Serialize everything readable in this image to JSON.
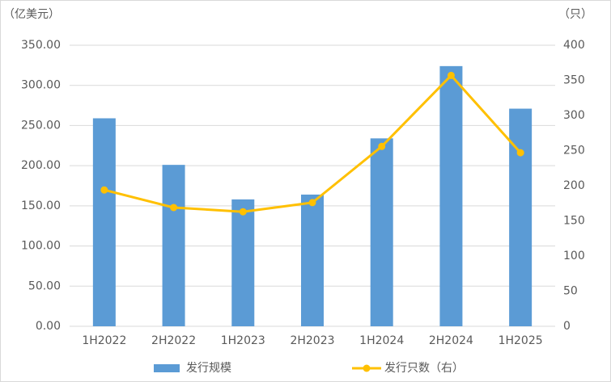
{
  "chart_data": {
    "type": "bar",
    "y_label": "（亿美元）",
    "y2_label": "（只）",
    "categories": [
      "1H2022",
      "2H2022",
      "1H2023",
      "2H2023",
      "1H2024",
      "2H2024",
      "1H2025"
    ],
    "series": [
      {
        "name": "发行规模",
        "type": "bar",
        "color": "#5b9bd5",
        "values": [
          259,
          201,
          158,
          164,
          234,
          324,
          271
        ]
      },
      {
        "name": "发行只数（右）",
        "type": "line",
        "axis": "y2",
        "color": "#ffc000",
        "values": [
          194,
          169,
          163,
          176,
          256,
          357,
          247
        ]
      }
    ],
    "ylim": [
      0,
      350
    ],
    "yticks": [
      {
        "value": 0,
        "label": "0.00"
      },
      {
        "value": 50,
        "label": "50.00"
      },
      {
        "value": 100,
        "label": "100.00"
      },
      {
        "value": 150,
        "label": "150.00"
      },
      {
        "value": 200,
        "label": "200.00"
      },
      {
        "value": 250,
        "label": "250.00"
      },
      {
        "value": 300,
        "label": "300.00"
      },
      {
        "value": 350,
        "label": "350.00"
      }
    ],
    "y2lim": [
      0,
      400
    ],
    "y2ticks": [
      0,
      50,
      100,
      150,
      200,
      250,
      300,
      350,
      400
    ],
    "grid": true,
    "legend": "bottom"
  }
}
